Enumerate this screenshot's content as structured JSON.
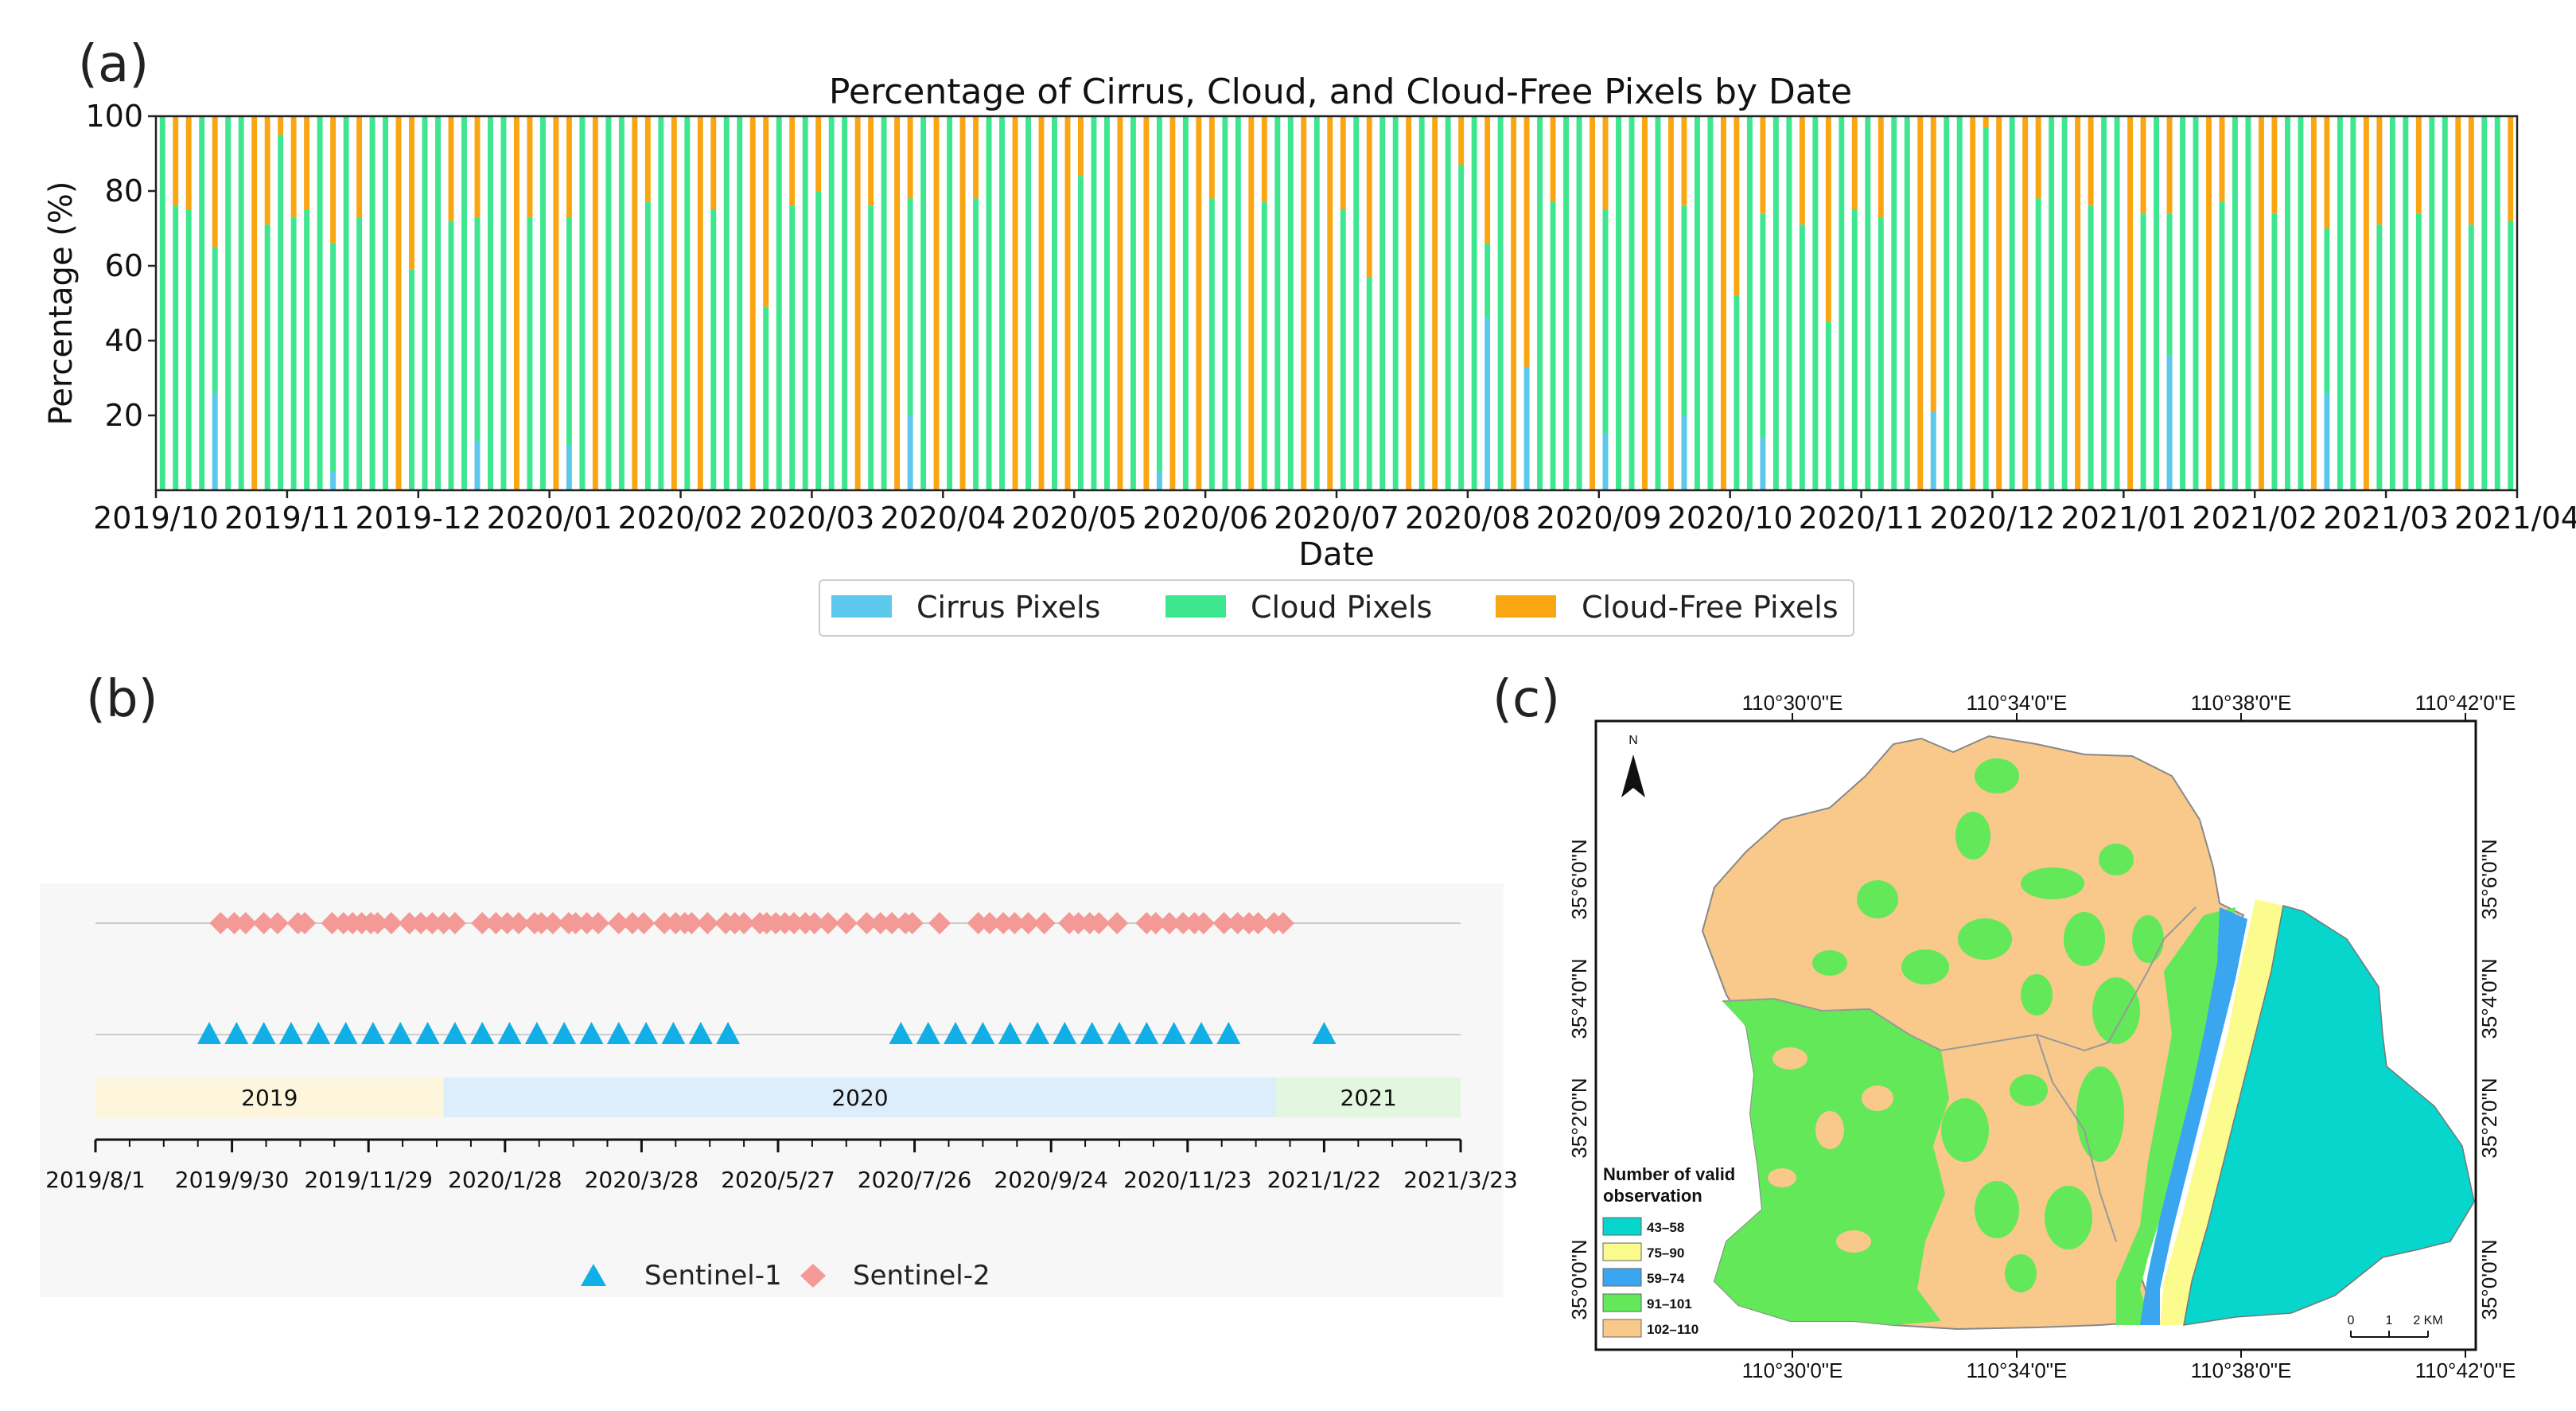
{
  "chart_data": [
    {
      "id": "a",
      "panel_label": "(a)",
      "type": "bar",
      "stacked": true,
      "title": "Percentage of Cirrus, Cloud, and Cloud-Free Pixels by Date",
      "xlabel": "Date",
      "ylabel": "Percentage (%)",
      "ylim": [
        0,
        100
      ],
      "yticks": [
        20,
        40,
        60,
        80,
        100
      ],
      "xtick_labels": [
        "2019/10",
        "2019/11",
        "2019-12",
        "2020/01",
        "2020/02",
        "2020/03",
        "2020/04",
        "2020/05",
        "2020/06",
        "2020/07",
        "2020/08",
        "2020/09",
        "2020/10",
        "2020/11",
        "2020/12",
        "2021/01",
        "2021/02",
        "2021/03",
        "2021/04"
      ],
      "legend": [
        "Cirrus Pixels",
        "Cloud Pixels",
        "Cloud-Free Pixels"
      ],
      "legend_position": "bottom-center",
      "colors": {
        "cirrus": "#5bc8ec",
        "cloud": "#3ee690",
        "clear": "#f9a612"
      },
      "n_bars": 180,
      "anchors": [
        {
          "i": 0,
          "cirrus": 0,
          "cloud": 100
        },
        {
          "i": 1,
          "cirrus": 0,
          "cloud": 76
        },
        {
          "i": 2,
          "cirrus": 0,
          "cloud": 75
        },
        {
          "i": 4,
          "cirrus": 26,
          "cloud": 39
        },
        {
          "i": 6,
          "cirrus": 0,
          "cloud": 100
        },
        {
          "i": 8,
          "cirrus": 0,
          "cloud": 71
        },
        {
          "i": 9,
          "cirrus": 0,
          "cloud": 95
        },
        {
          "i": 10,
          "cirrus": 0,
          "cloud": 73
        },
        {
          "i": 11,
          "cirrus": 0,
          "cloud": 75
        },
        {
          "i": 13,
          "cirrus": 5,
          "cloud": 61
        },
        {
          "i": 15,
          "cirrus": 0,
          "cloud": 73
        },
        {
          "i": 17,
          "cirrus": 0,
          "cloud": 100
        },
        {
          "i": 19,
          "cirrus": 0,
          "cloud": 59
        },
        {
          "i": 21,
          "cirrus": 0,
          "cloud": 100
        },
        {
          "i": 22,
          "cirrus": 0,
          "cloud": 72
        },
        {
          "i": 24,
          "cirrus": 13,
          "cloud": 60
        },
        {
          "i": 26,
          "cirrus": 0,
          "cloud": 100
        },
        {
          "i": 28,
          "cirrus": 0,
          "cloud": 73
        },
        {
          "i": 31,
          "cirrus": 12,
          "cloud": 61
        },
        {
          "i": 35,
          "cirrus": 0,
          "cloud": 100
        },
        {
          "i": 37,
          "cirrus": 0,
          "cloud": 77
        },
        {
          "i": 40,
          "cirrus": 0,
          "cloud": 100
        },
        {
          "i": 42,
          "cirrus": 0,
          "cloud": 75
        },
        {
          "i": 44,
          "cirrus": 0,
          "cloud": 100
        },
        {
          "i": 46,
          "cirrus": 0,
          "cloud": 49
        },
        {
          "i": 48,
          "cirrus": 0,
          "cloud": 76
        },
        {
          "i": 50,
          "cirrus": 0,
          "cloud": 80
        },
        {
          "i": 52,
          "cirrus": 0,
          "cloud": 100
        },
        {
          "i": 54,
          "cirrus": 0,
          "cloud": 76
        },
        {
          "i": 57,
          "cirrus": 20,
          "cloud": 58
        },
        {
          "i": 60,
          "cirrus": 0,
          "cloud": 100
        },
        {
          "i": 62,
          "cirrus": 0,
          "cloud": 78
        },
        {
          "i": 64,
          "cirrus": 0,
          "cloud": 100
        },
        {
          "i": 66,
          "cirrus": 0,
          "cloud": 100
        },
        {
          "i": 68,
          "cirrus": 0,
          "cloud": 100
        },
        {
          "i": 70,
          "cirrus": 0,
          "cloud": 84
        },
        {
          "i": 72,
          "cirrus": 0,
          "cloud": 100
        },
        {
          "i": 74,
          "cirrus": 0,
          "cloud": 100
        },
        {
          "i": 76,
          "cirrus": 5,
          "cloud": 95
        },
        {
          "i": 78,
          "cirrus": 0,
          "cloud": 100
        },
        {
          "i": 80,
          "cirrus": 0,
          "cloud": 78
        },
        {
          "i": 82,
          "cirrus": 0,
          "cloud": 100
        },
        {
          "i": 84,
          "cirrus": 0,
          "cloud": 77
        },
        {
          "i": 86,
          "cirrus": 0,
          "cloud": 100
        },
        {
          "i": 88,
          "cirrus": 0,
          "cloud": 100
        },
        {
          "i": 90,
          "cirrus": 0,
          "cloud": 75
        },
        {
          "i": 92,
          "cirrus": 0,
          "cloud": 57
        },
        {
          "i": 94,
          "cirrus": 0,
          "cloud": 100
        },
        {
          "i": 96,
          "cirrus": 0,
          "cloud": 100
        },
        {
          "i": 98,
          "cirrus": 0,
          "cloud": 100
        },
        {
          "i": 99,
          "cirrus": 0,
          "cloud": 87
        },
        {
          "i": 101,
          "cirrus": 46,
          "cloud": 20
        },
        {
          "i": 102,
          "cirrus": 0,
          "cloud": 100
        },
        {
          "i": 104,
          "cirrus": 33,
          "cloud": 0
        },
        {
          "i": 106,
          "cirrus": 0,
          "cloud": 77
        },
        {
          "i": 108,
          "cirrus": 0,
          "cloud": 100
        },
        {
          "i": 110,
          "cirrus": 15,
          "cloud": 60
        },
        {
          "i": 112,
          "cirrus": 0,
          "cloud": 100
        },
        {
          "i": 114,
          "cirrus": 0,
          "cloud": 100
        },
        {
          "i": 116,
          "cirrus": 20,
          "cloud": 56
        },
        {
          "i": 118,
          "cirrus": 0,
          "cloud": 100
        },
        {
          "i": 120,
          "cirrus": 0,
          "cloud": 52
        },
        {
          "i": 122,
          "cirrus": 14,
          "cloud": 60
        },
        {
          "i": 124,
          "cirrus": 0,
          "cloud": 100
        },
        {
          "i": 125,
          "cirrus": 0,
          "cloud": 71
        },
        {
          "i": 127,
          "cirrus": 0,
          "cloud": 45
        },
        {
          "i": 129,
          "cirrus": 0,
          "cloud": 75
        },
        {
          "i": 131,
          "cirrus": 0,
          "cloud": 73
        },
        {
          "i": 133,
          "cirrus": 0,
          "cloud": 100
        },
        {
          "i": 135,
          "cirrus": 21,
          "cloud": 0
        },
        {
          "i": 137,
          "cirrus": 0,
          "cloud": 100
        },
        {
          "i": 139,
          "cirrus": 0,
          "cloud": 97
        },
        {
          "i": 141,
          "cirrus": 0,
          "cloud": 100
        },
        {
          "i": 143,
          "cirrus": 0,
          "cloud": 78
        },
        {
          "i": 145,
          "cirrus": 0,
          "cloud": 100
        },
        {
          "i": 147,
          "cirrus": 0,
          "cloud": 76
        },
        {
          "i": 149,
          "cirrus": 0,
          "cloud": 100
        },
        {
          "i": 151,
          "cirrus": 0,
          "cloud": 74
        },
        {
          "i": 153,
          "cirrus": 36,
          "cloud": 38
        },
        {
          "i": 155,
          "cirrus": 0,
          "cloud": 100
        },
        {
          "i": 157,
          "cirrus": 0,
          "cloud": 77
        },
        {
          "i": 159,
          "cirrus": 0,
          "cloud": 100
        },
        {
          "i": 161,
          "cirrus": 0,
          "cloud": 74
        },
        {
          "i": 163,
          "cirrus": 0,
          "cloud": 100
        },
        {
          "i": 165,
          "cirrus": 26,
          "cloud": 44
        },
        {
          "i": 167,
          "cirrus": 0,
          "cloud": 100
        },
        {
          "i": 169,
          "cirrus": 0,
          "cloud": 71
        },
        {
          "i": 171,
          "cirrus": 0,
          "cloud": 100
        },
        {
          "i": 172,
          "cirrus": 0,
          "cloud": 74
        },
        {
          "i": 174,
          "cirrus": 0,
          "cloud": 100
        },
        {
          "i": 176,
          "cirrus": 0,
          "cloud": 71
        },
        {
          "i": 178,
          "cirrus": 0,
          "cloud": 100
        },
        {
          "i": 179,
          "cirrus": 0,
          "cloud": 72
        }
      ]
    },
    {
      "id": "b",
      "panel_label": "(b)",
      "type": "scatter",
      "x_range": [
        "2019/8/1",
        "2021/3/23"
      ],
      "xtick_labels": [
        "2019/8/1",
        "2019/9/30",
        "2019/11/29",
        "2020/1/28",
        "2020/3/28",
        "2020/5/27",
        "2020/7/26",
        "2020/9/24",
        "2020/11/23",
        "2021/1/22",
        "2021/3/23"
      ],
      "xticks_day": [
        0,
        60,
        120,
        180,
        240,
        300,
        360,
        420,
        480,
        540,
        600
      ],
      "year_bands": [
        {
          "label": "2019",
          "start_day": 0,
          "end_day": 153,
          "color": "#fdf6dd"
        },
        {
          "label": "2020",
          "start_day": 153,
          "end_day": 519,
          "color": "#dcedfb"
        },
        {
          "label": "2021",
          "start_day": 519,
          "end_day": 600,
          "color": "#e3f6e0"
        }
      ],
      "legend": [
        "Sentinel-1",
        "Sentinel-2"
      ],
      "legend_position": "bottom-center",
      "colors": {
        "s1": "#12aee6",
        "s2": "#f39a96"
      },
      "series": [
        {
          "name": "Sentinel-1",
          "marker": "triangle",
          "x_day": [
            50,
            62,
            74,
            86,
            98,
            110,
            122,
            134,
            146,
            158,
            170,
            182,
            194,
            206,
            218,
            230,
            242,
            254,
            266,
            278,
            354,
            366,
            378,
            390,
            402,
            414,
            426,
            438,
            450,
            462,
            474,
            486,
            498,
            540
          ]
        },
        {
          "name": "Sentinel-2",
          "marker": "diamond",
          "x_day": [
            55,
            61,
            66,
            74,
            80,
            89,
            92,
            104,
            109,
            113,
            117,
            121,
            124,
            130,
            138,
            143,
            148,
            153,
            158,
            170,
            176,
            181,
            186,
            193,
            196,
            201,
            208,
            211,
            216,
            221,
            230,
            236,
            241,
            250,
            255,
            259,
            262,
            269,
            277,
            281,
            285,
            292,
            295,
            299,
            303,
            307,
            312,
            316,
            322,
            330,
            339,
            345,
            350,
            356,
            359,
            371,
            388,
            393,
            399,
            404,
            410,
            417,
            428,
            432,
            437,
            441,
            449,
            462,
            466,
            472,
            478,
            483,
            487,
            496,
            502,
            507,
            511,
            518,
            522
          ]
        }
      ]
    },
    {
      "id": "c",
      "panel_label": "(c)",
      "type": "map",
      "top_lon_labels": [
        "110°30'0\"E",
        "110°34'0\"E",
        "110°38'0\"E",
        "110°42'0\"E"
      ],
      "bottom_lon_labels": [
        "110°30'0\"E",
        "110°34'0\"E",
        "110°38'0\"E",
        "110°42'0\"E"
      ],
      "left_lat_labels": [
        "35°6'0\"N",
        "35°4'0\"N",
        "35°2'0\"N",
        "35°0'0\"N"
      ],
      "right_lat_labels": [
        "35°6'0\"N",
        "35°4'0\"N",
        "35°2'0\"N",
        "35°0'0\"N"
      ],
      "north_label": "N",
      "legend_title": "Number of valid observation",
      "legend_items": [
        {
          "label": "43–58",
          "color": "#07d6cc"
        },
        {
          "label": "75–90",
          "color": "#fbfb8e"
        },
        {
          "label": "59–74",
          "color": "#3aa6f0"
        },
        {
          "label": "91–101",
          "color": "#62e859"
        },
        {
          "label": "102–110",
          "color": "#f8c98a"
        }
      ],
      "scale_labels": [
        "0",
        "1",
        "2 KM"
      ]
    }
  ]
}
